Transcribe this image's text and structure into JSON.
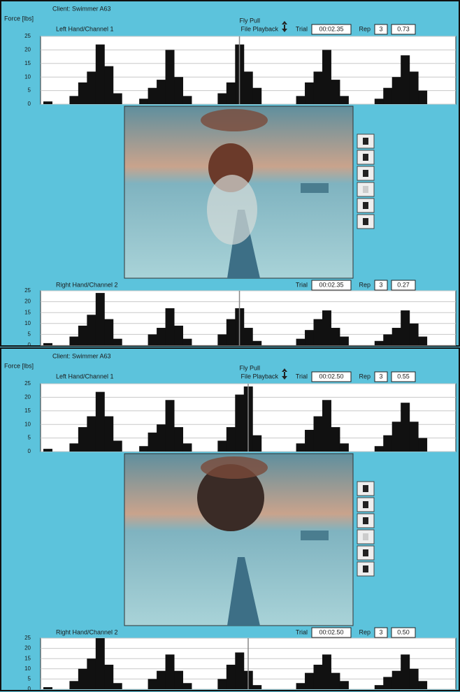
{
  "panels": [
    {
      "client": "Client: Swimmer A63",
      "force_label": "Force [lbs]",
      "stroke": "Fly Pull",
      "mode": "File Playback",
      "left": {
        "title": "Left Hand/Channel 1",
        "trial_label": "Trial",
        "trial": "00:02.35",
        "rep_label": "Rep",
        "rep": "3",
        "force": "0.73",
        "ylim": [
          0,
          25
        ],
        "yticks": [
          0,
          5,
          10,
          15,
          20,
          25
        ],
        "cursor": 22,
        "values": [
          1,
          0,
          0,
          3,
          8,
          12,
          22,
          14,
          4,
          0,
          0,
          2,
          6,
          9,
          20,
          10,
          3,
          0,
          0,
          0,
          4,
          8,
          22,
          12,
          6,
          0,
          0,
          0,
          0,
          3,
          8,
          12,
          20,
          9,
          3,
          0,
          0,
          0,
          2,
          6,
          10,
          18,
          12,
          5,
          0,
          0,
          0
        ]
      },
      "right": {
        "title": "Right Hand/Channel 2",
        "trial_label": "Trial",
        "trial": "00:02.35",
        "rep_label": "Rep",
        "rep": "3",
        "force": "0.27",
        "ylim": [
          0,
          25
        ],
        "yticks": [
          0,
          5,
          10,
          15,
          20,
          25
        ],
        "cursor": 22,
        "values": [
          1,
          0,
          0,
          4,
          9,
          14,
          24,
          12,
          3,
          0,
          0,
          0,
          5,
          8,
          17,
          9,
          3,
          0,
          0,
          0,
          5,
          12,
          17,
          8,
          2,
          0,
          0,
          0,
          0,
          3,
          7,
          12,
          16,
          8,
          4,
          0,
          0,
          0,
          2,
          5,
          8,
          16,
          10,
          4,
          0,
          0,
          0
        ]
      }
    },
    {
      "client": "Client: Swimmer A63",
      "force_label": "Force [lbs]",
      "stroke": "Fly Pull",
      "mode": "File Playback",
      "left": {
        "title": "Left Hand/Channel 1",
        "trial_label": "Trial",
        "trial": "00:02.50",
        "rep_label": "Rep",
        "rep": "3",
        "force": "0.55",
        "ylim": [
          0,
          25
        ],
        "yticks": [
          0,
          5,
          10,
          15,
          20,
          25
        ],
        "cursor": 23,
        "values": [
          1,
          0,
          0,
          3,
          9,
          13,
          22,
          13,
          4,
          0,
          0,
          2,
          7,
          10,
          19,
          9,
          3,
          0,
          0,
          0,
          4,
          9,
          21,
          24,
          6,
          0,
          0,
          0,
          0,
          3,
          8,
          13,
          19,
          9,
          3,
          0,
          0,
          0,
          2,
          6,
          11,
          18,
          11,
          5,
          0,
          0,
          0
        ]
      },
      "right": {
        "title": "Right Hand/Channel 2",
        "trial_label": "Trial",
        "trial": "00:02.50",
        "rep_label": "Rep",
        "rep": "3",
        "force": "0.50",
        "ylim": [
          0,
          25
        ],
        "yticks": [
          0,
          5,
          10,
          15,
          20,
          25
        ],
        "cursor": 23,
        "values": [
          1,
          0,
          0,
          4,
          10,
          15,
          25,
          12,
          3,
          0,
          0,
          0,
          5,
          9,
          17,
          9,
          3,
          0,
          0,
          0,
          5,
          12,
          18,
          9,
          2,
          0,
          0,
          0,
          0,
          3,
          8,
          12,
          17,
          8,
          4,
          0,
          0,
          0,
          2,
          6,
          9,
          17,
          10,
          4,
          0,
          0,
          0
        ]
      }
    }
  ]
}
